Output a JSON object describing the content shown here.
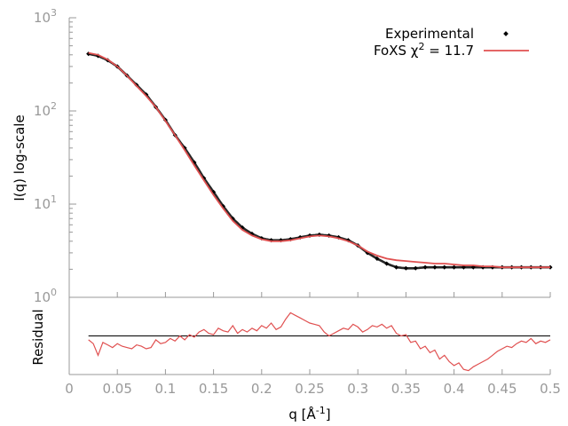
{
  "chart_data": {
    "type": "line",
    "main": {
      "xlim": [
        0,
        0.5
      ],
      "yscale": "log",
      "ylim": [
        1,
        1000
      ],
      "ylabel": "I(q) log-scale",
      "ytick_exponents": [
        "0",
        "1",
        "2",
        "3"
      ],
      "ytick_base": "10",
      "legend_position": "top-right",
      "series": [
        {
          "name": "Experimental",
          "style": "points",
          "color": "#000000",
          "x": [
            0.02,
            0.03,
            0.04,
            0.05,
            0.06,
            0.07,
            0.08,
            0.09,
            0.1,
            0.11,
            0.12,
            0.13,
            0.14,
            0.15,
            0.16,
            0.17,
            0.18,
            0.19,
            0.2,
            0.21,
            0.22,
            0.23,
            0.24,
            0.25,
            0.26,
            0.27,
            0.28,
            0.29,
            0.3,
            0.31,
            0.32,
            0.33,
            0.34,
            0.35,
            0.36,
            0.37,
            0.38,
            0.39,
            0.4,
            0.41,
            0.42,
            0.43,
            0.44,
            0.45,
            0.46,
            0.47,
            0.48,
            0.49,
            0.5
          ],
          "y": [
            410,
            390,
            350,
            300,
            240,
            190,
            150,
            110,
            80,
            55,
            40,
            28,
            19,
            13.5,
            9.5,
            7.0,
            5.6,
            4.8,
            4.3,
            4.1,
            4.1,
            4.2,
            4.4,
            4.6,
            4.7,
            4.6,
            4.4,
            4.1,
            3.6,
            3.0,
            2.6,
            2.3,
            2.1,
            2.05,
            2.05,
            2.1,
            2.1,
            2.1,
            2.1,
            2.1,
            2.1,
            2.1,
            2.1,
            2.1,
            2.1,
            2.1,
            2.1,
            2.1,
            2.1
          ]
        },
        {
          "name": "FoXS χ² = 11.7",
          "name_prefix": "FoXS χ",
          "name_sup": "2",
          "name_suffix": " = 11.7",
          "style": "line",
          "color": "#e05050",
          "x": [
            0.02,
            0.03,
            0.04,
            0.05,
            0.06,
            0.07,
            0.08,
            0.09,
            0.1,
            0.11,
            0.12,
            0.13,
            0.14,
            0.15,
            0.16,
            0.17,
            0.18,
            0.19,
            0.2,
            0.21,
            0.22,
            0.23,
            0.24,
            0.25,
            0.26,
            0.27,
            0.28,
            0.29,
            0.3,
            0.31,
            0.32,
            0.33,
            0.34,
            0.35,
            0.36,
            0.37,
            0.38,
            0.39,
            0.4,
            0.41,
            0.42,
            0.43,
            0.44,
            0.45,
            0.46,
            0.47,
            0.48,
            0.49,
            0.5
          ],
          "y": [
            420,
            400,
            355,
            300,
            240,
            185,
            145,
            110,
            78,
            55,
            38,
            26,
            18,
            12.5,
            9.0,
            6.6,
            5.3,
            4.6,
            4.2,
            4.0,
            4.0,
            4.1,
            4.3,
            4.5,
            4.6,
            4.5,
            4.3,
            4.0,
            3.6,
            3.1,
            2.8,
            2.6,
            2.5,
            2.45,
            2.4,
            2.35,
            2.3,
            2.3,
            2.25,
            2.2,
            2.2,
            2.15,
            2.15,
            2.1,
            2.1,
            2.1,
            2.1,
            2.1,
            2.1
          ]
        }
      ]
    },
    "residual": {
      "ylabel": "Residual",
      "ylim": [
        -3,
        3
      ],
      "reference_line": 0,
      "color": "#e05050",
      "x": [
        0.02,
        0.025,
        0.03,
        0.035,
        0.04,
        0.045,
        0.05,
        0.055,
        0.06,
        0.065,
        0.07,
        0.075,
        0.08,
        0.085,
        0.09,
        0.095,
        0.1,
        0.105,
        0.11,
        0.115,
        0.12,
        0.125,
        0.13,
        0.135,
        0.14,
        0.145,
        0.15,
        0.155,
        0.16,
        0.165,
        0.17,
        0.175,
        0.18,
        0.185,
        0.19,
        0.195,
        0.2,
        0.205,
        0.21,
        0.215,
        0.22,
        0.225,
        0.23,
        0.235,
        0.24,
        0.245,
        0.25,
        0.255,
        0.26,
        0.265,
        0.27,
        0.275,
        0.28,
        0.285,
        0.29,
        0.295,
        0.3,
        0.305,
        0.31,
        0.315,
        0.32,
        0.325,
        0.33,
        0.335,
        0.34,
        0.345,
        0.35,
        0.355,
        0.36,
        0.365,
        0.37,
        0.375,
        0.38,
        0.385,
        0.39,
        0.395,
        0.4,
        0.405,
        0.41,
        0.415,
        0.42,
        0.425,
        0.43,
        0.435,
        0.44,
        0.445,
        0.45,
        0.455,
        0.46,
        0.465,
        0.47,
        0.475,
        0.48,
        0.485,
        0.49,
        0.495,
        0.5
      ],
      "y": [
        -0.3,
        -0.6,
        -1.5,
        -0.5,
        -0.7,
        -0.9,
        -0.6,
        -0.8,
        -0.9,
        -1.0,
        -0.7,
        -0.8,
        -1.0,
        -0.9,
        -0.3,
        -0.6,
        -0.5,
        -0.2,
        -0.4,
        0.0,
        -0.3,
        0.1,
        -0.1,
        0.3,
        0.5,
        0.2,
        0.1,
        0.6,
        0.4,
        0.3,
        0.8,
        0.2,
        0.5,
        0.3,
        0.6,
        0.4,
        0.8,
        0.6,
        1.0,
        0.5,
        0.7,
        1.3,
        1.8,
        1.6,
        1.4,
        1.2,
        1.0,
        0.9,
        0.8,
        0.3,
        0.0,
        0.2,
        0.4,
        0.6,
        0.5,
        0.9,
        0.7,
        0.3,
        0.5,
        0.8,
        0.7,
        0.9,
        0.6,
        0.8,
        0.2,
        0.0,
        0.1,
        -0.5,
        -0.4,
        -1.0,
        -0.8,
        -1.3,
        -1.1,
        -1.8,
        -1.5,
        -2.0,
        -2.3,
        -2.1,
        -2.6,
        -2.7,
        -2.4,
        -2.2,
        -2.0,
        -1.8,
        -1.5,
        -1.2,
        -1.0,
        -0.8,
        -0.9,
        -0.6,
        -0.4,
        -0.5,
        -0.2,
        -0.6,
        -0.4,
        -0.5,
        -0.3
      ]
    },
    "x_ticks": [
      "0",
      "0.05",
      "0.1",
      "0.15",
      "0.2",
      "0.25",
      "0.3",
      "0.35",
      "0.4",
      "0.45",
      "0.5"
    ],
    "x_tick_values": [
      0,
      0.05,
      0.1,
      0.15,
      0.2,
      0.25,
      0.3,
      0.35,
      0.4,
      0.45,
      0.5
    ],
    "xlabel_prefix": "q [Å",
    "xlabel_sup": "-1",
    "xlabel_suffix": "]"
  }
}
